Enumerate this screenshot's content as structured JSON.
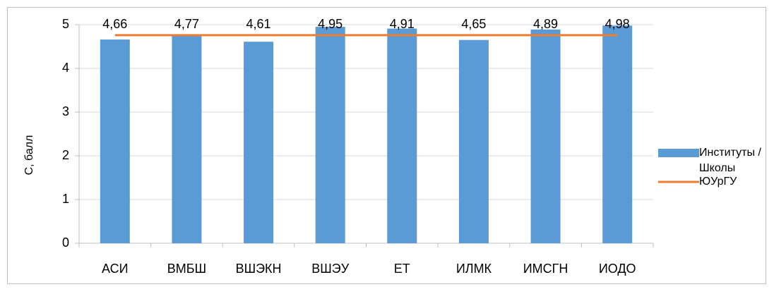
{
  "chart_data": {
    "type": "bar",
    "y_label": "С, балл",
    "categories": [
      "АСИ",
      "ВМБШ",
      "ВШЭКН",
      "ВШЭУ",
      "ЕТ",
      "ИЛМК",
      "ИМСГН",
      "ИОДО"
    ],
    "series": [
      {
        "name": "Институты / Школы",
        "type": "bar",
        "color": "#5b9bd5",
        "values": [
          4.66,
          4.77,
          4.61,
          4.95,
          4.91,
          4.65,
          4.89,
          4.98
        ],
        "value_labels": [
          "4,66",
          "4,77",
          "4,61",
          "4,95",
          "4,91",
          "4,65",
          "4,89",
          "4,98"
        ]
      },
      {
        "name": "ЮУрГУ",
        "type": "line",
        "color": "#ed7d31",
        "values": [
          4.76,
          4.76,
          4.76,
          4.76,
          4.76,
          4.76,
          4.76,
          4.76
        ]
      }
    ],
    "ylim": [
      0,
      5
    ],
    "yticks": [
      0,
      1,
      2,
      3,
      4,
      5
    ],
    "grid": true,
    "legend": "right"
  }
}
